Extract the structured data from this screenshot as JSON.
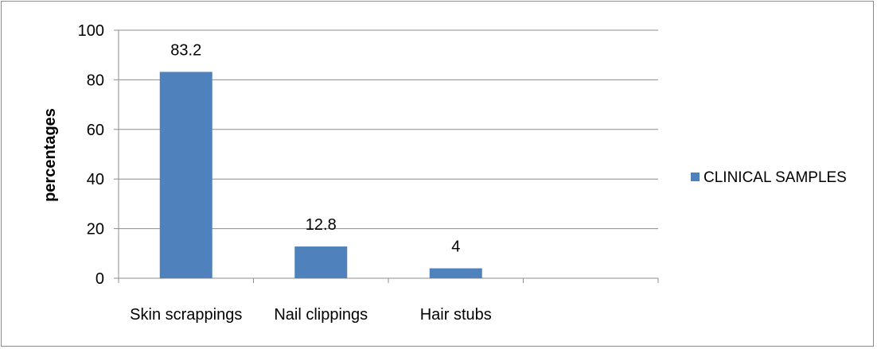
{
  "chart_data": {
    "type": "bar",
    "title": "",
    "xlabel": "",
    "ylabel": "percentages",
    "ylim": [
      0,
      100
    ],
    "yticks": [
      0,
      20,
      40,
      60,
      80,
      100
    ],
    "grid": true,
    "legend_position": "right",
    "categories": [
      "Skin scrappings",
      "Nail clippings",
      "Hair stubs",
      ""
    ],
    "series": [
      {
        "name": "CLINICAL SAMPLES",
        "values": [
          83.2,
          12.8,
          4,
          null
        ],
        "color": "#4f81bd"
      }
    ],
    "data_labels": [
      "83.2",
      "12.8",
      "4",
      ""
    ]
  }
}
